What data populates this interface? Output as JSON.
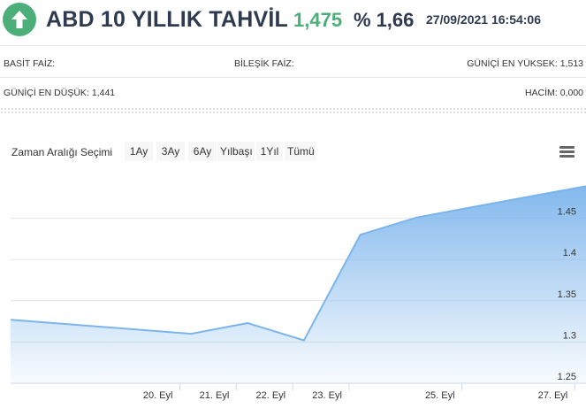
{
  "header": {
    "direction_icon": "arrow-up-icon",
    "title": "ABD 10 YILLIK TAHVİL",
    "price": "1,475",
    "change_symbol": "%",
    "change_value": "1,66",
    "datetime": "27/09/2021 16:54:06",
    "colors": {
      "up": "#4caf7a",
      "title": "#2e3a4f"
    }
  },
  "stats": {
    "simple_rate_label": "BASİT FAİZ:",
    "simple_rate_value": "",
    "compound_rate_label": "BİLEŞİK FAİZ:",
    "compound_rate_value": "",
    "day_high_label": "GÜNİÇİ EN YÜKSEK:",
    "day_high_value": "1,513",
    "day_low_label": "GÜNİÇİ EN DÜŞÜK:",
    "day_low_value": "1,441",
    "volume_label": "HACİM:",
    "volume_value": "0,000"
  },
  "range_selector": {
    "label": "Zaman Aralığı Seçimi",
    "buttons": [
      "1Ay",
      "3Ay",
      "6Ay",
      "Yılbaşı",
      "1Yıl",
      "Tümü"
    ],
    "menu_icon": "hamburger-menu-icon"
  },
  "chart_data": {
    "type": "area",
    "x": [
      "2021-09-17",
      "2021-09-20",
      "2021-09-21",
      "2021-09-22",
      "2021-09-23",
      "2021-09-24",
      "2021-09-27"
    ],
    "values": [
      1.327,
      1.31,
      1.323,
      1.302,
      1.43,
      1.451,
      1.489
    ],
    "x_ticks": [
      "20. Eyl",
      "21. Eyl",
      "22. Eyl",
      "23. Eyl",
      "25. Eyl",
      "27. Eyl"
    ],
    "y_ticks": [
      "1.25",
      "1.3",
      "1.35",
      "1.4",
      "1.45"
    ],
    "ylim": [
      1.25,
      1.5
    ],
    "grid": true,
    "line_color": "#7cb5ec"
  }
}
